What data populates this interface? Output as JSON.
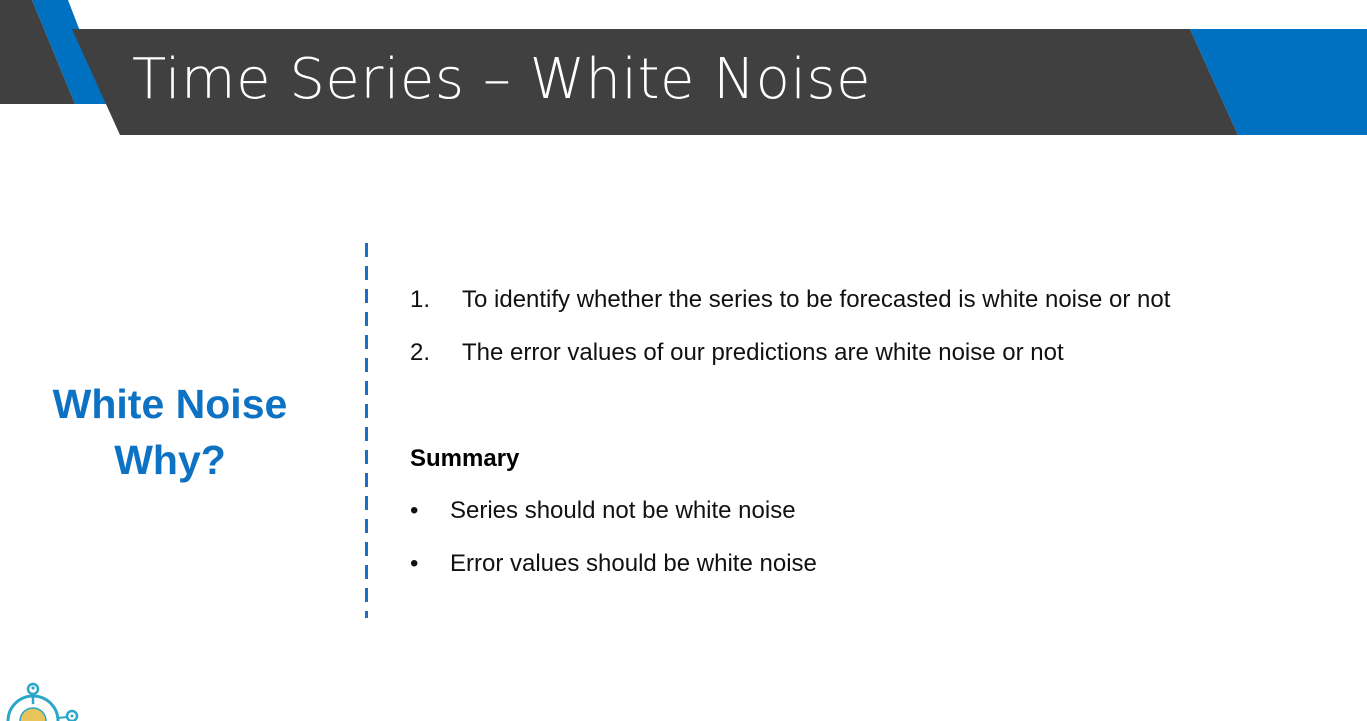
{
  "slide": {
    "title": "Time Series – White Noise",
    "side_heading": {
      "line1": "White Noise",
      "line2": "Why?"
    },
    "numbered_items": [
      {
        "number": "1.",
        "text": "To identify whether the series to be forecasted is white noise or not"
      },
      {
        "number": "2.",
        "text": "The error values of our predictions are white noise or not"
      }
    ],
    "summary_heading": "Summary",
    "bullet_symbol": "•",
    "bullets": [
      "Series should not be white noise",
      "Error values should be white noise"
    ]
  },
  "colors": {
    "banner": "#404040",
    "accent_blue": "#0070c0",
    "heading_blue": "#0e72c4",
    "logo_teal": "#2aa6c9"
  }
}
